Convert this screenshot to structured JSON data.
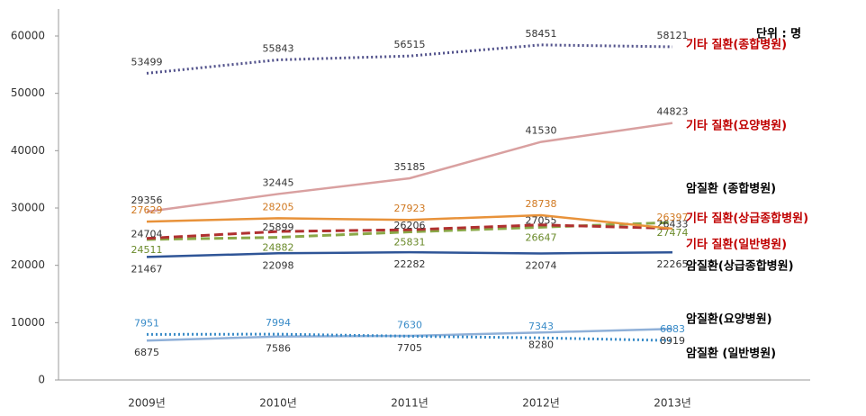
{
  "chart_data": {
    "type": "line",
    "unit_label": "단위 : 명",
    "categories": [
      "2009년",
      "2010년",
      "2011년",
      "2012년",
      "2013년"
    ],
    "ylim": [
      0,
      60000
    ],
    "yticks": [
      0,
      10000,
      20000,
      30000,
      40000,
      50000,
      60000
    ],
    "grid": false,
    "series": [
      {
        "name": "기타 질환(종합병원)",
        "color": "#50508a",
        "dash": "dotted",
        "name_color": "#c00000",
        "label_color": "#333333",
        "values": [
          53499,
          55843,
          56515,
          58451,
          58121
        ]
      },
      {
        "name": "기타 질환(요양병원)",
        "color": "#d9a0a0",
        "dash": "solid",
        "name_color": "#c00000",
        "label_color": "#333333",
        "values": [
          29356,
          32445,
          35185,
          41530,
          44823
        ]
      },
      {
        "name": "암질환 (종합병원)",
        "color": "#8aa848",
        "dash": "dashed",
        "name_color": "#000000",
        "label_color": "#6a8a2a",
        "values": [
          24511,
          24882,
          25831,
          26647,
          27474
        ]
      },
      {
        "name": "기타 질환(상급종합병원)",
        "color": "#b03030",
        "dash": "dashed",
        "name_color": "#c00000",
        "label_color": "#333333",
        "values": [
          24704,
          25899,
          26206,
          27055,
          26433
        ]
      },
      {
        "name": "기타 질환(일반병원)",
        "color": "#e8923a",
        "dash": "solid",
        "name_color": "#c00000",
        "label_color": "#d07820",
        "values": [
          27629,
          28205,
          27923,
          28738,
          26397
        ]
      },
      {
        "name": "암질환(상급종합병원)",
        "color": "#2f5597",
        "dash": "solid",
        "name_color": "#000000",
        "label_color": "#333333",
        "values": [
          21467,
          22098,
          22282,
          22074,
          22265
        ]
      },
      {
        "name": "암질환(요양병원)",
        "color": "#8fb0d8",
        "dash": "solid",
        "name_color": "#000000",
        "label_color": "#333333",
        "values": [
          6875,
          7586,
          7705,
          8280,
          8919
        ]
      },
      {
        "name": "암질환 (일반병원)",
        "color": "#3a8cc8",
        "dash": "dotted",
        "name_color": "#000000",
        "label_color": "#3a8cc8",
        "values": [
          7951,
          7994,
          7630,
          7343,
          6883
        ]
      }
    ]
  }
}
